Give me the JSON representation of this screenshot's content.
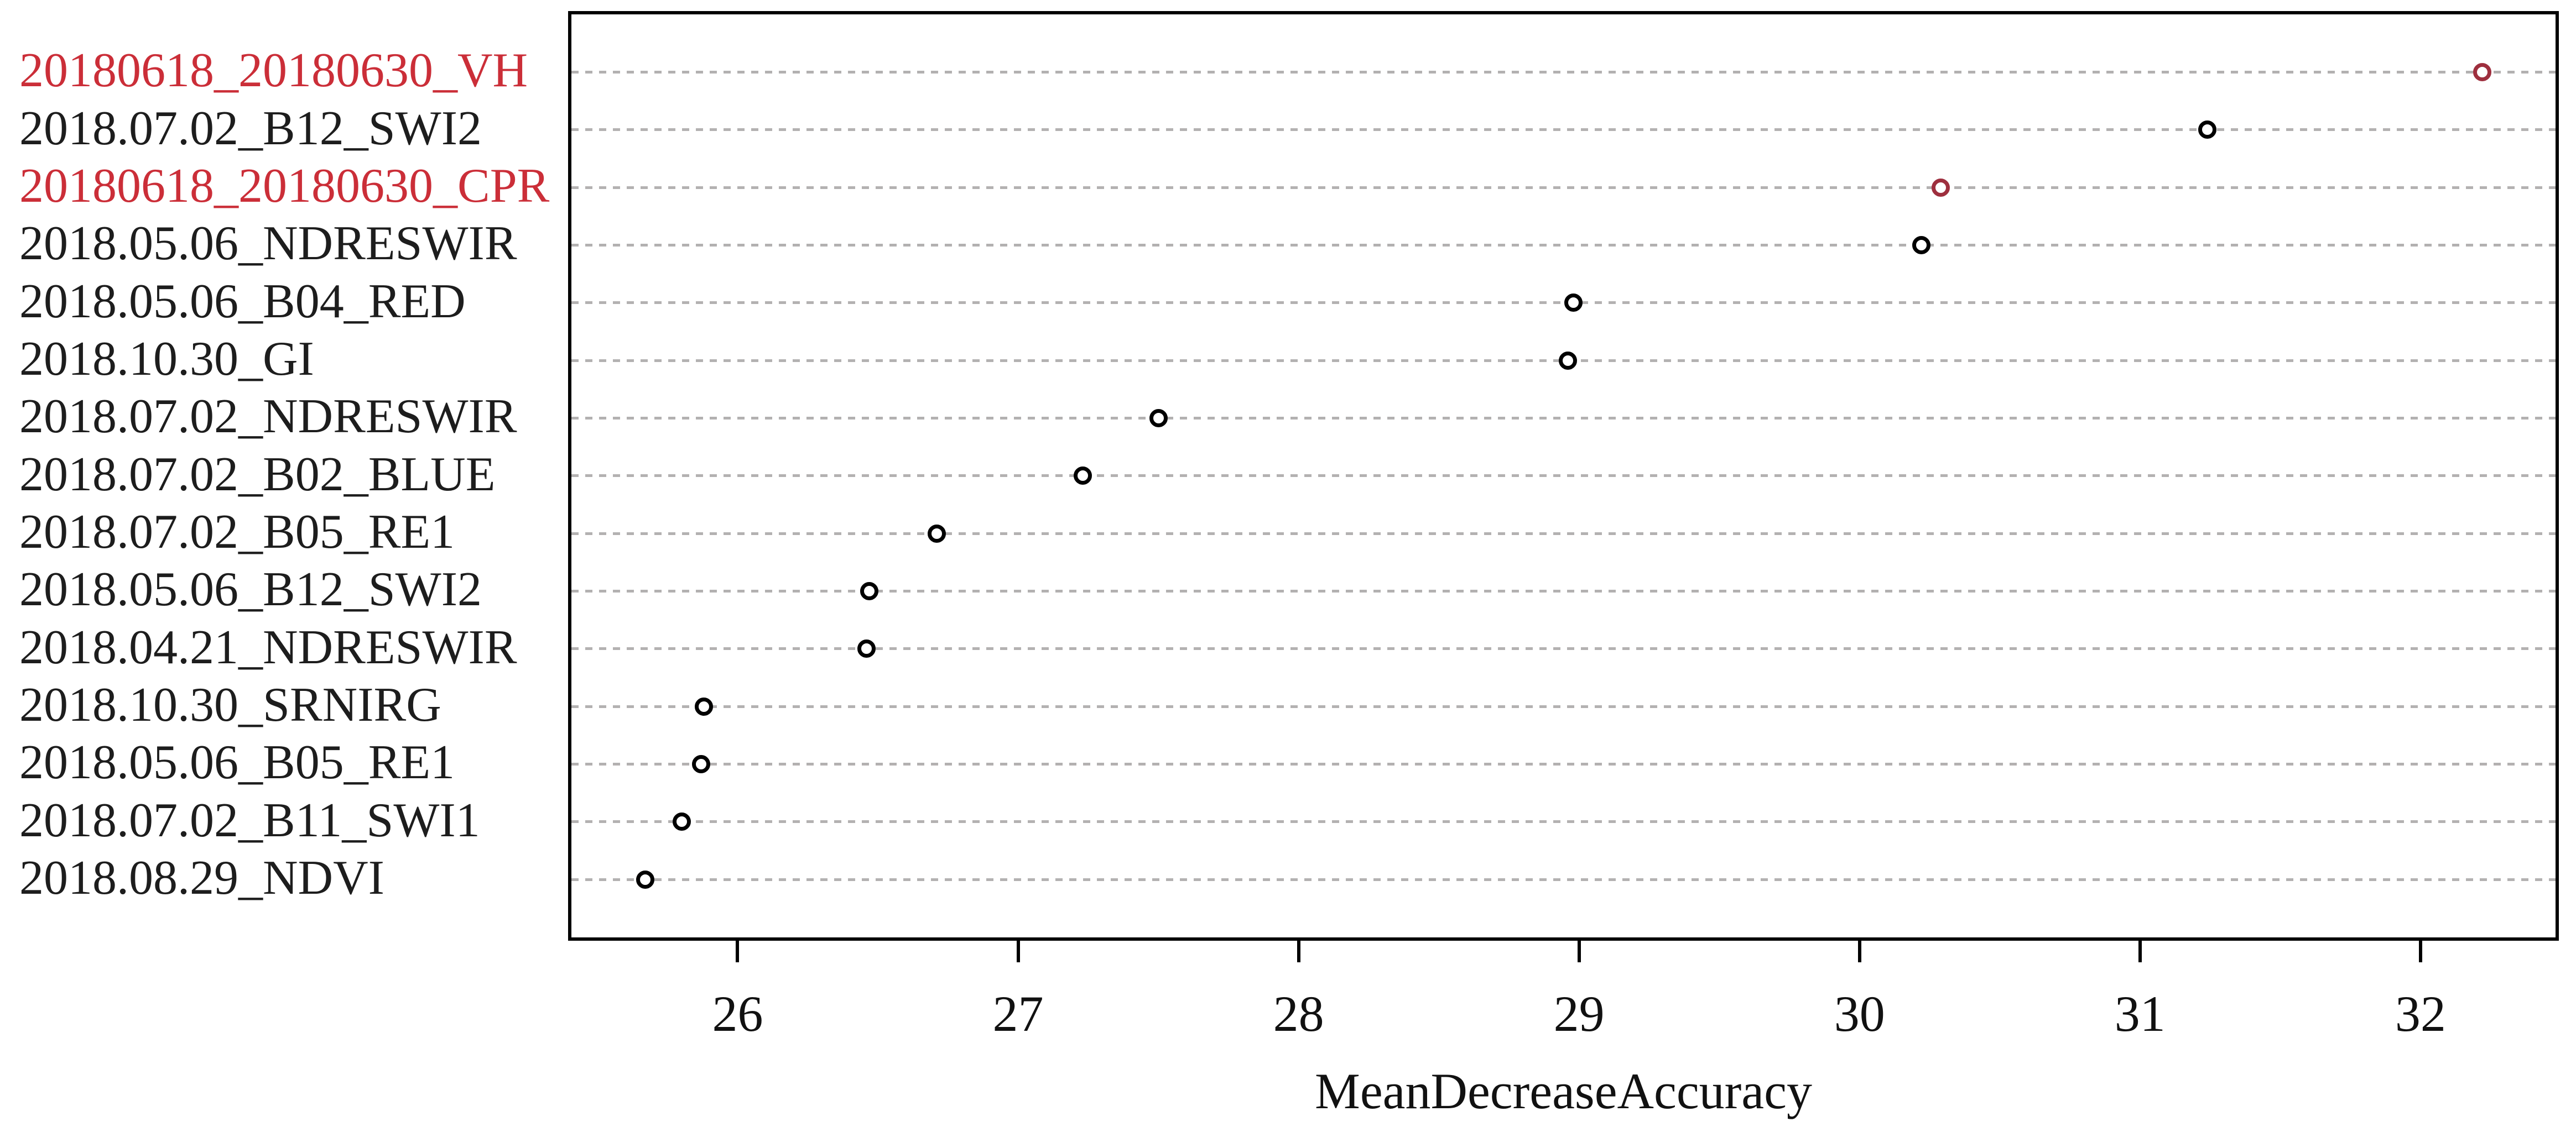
{
  "chart_data": {
    "type": "scatter",
    "subtype": "dotchart-variable-importance",
    "title": "",
    "xlabel": "MeanDecreaseAccuracy",
    "ylabel": "",
    "xlim": [
      25.41,
      32.48
    ],
    "xticks": [
      26,
      27,
      28,
      29,
      30,
      31,
      32
    ],
    "grid": "horizontal-dashed",
    "legend_position": "none",
    "point_marker": "open-circle",
    "row_order": "top-to-bottom",
    "categories": [
      "20180618_20180630_VH",
      "2018.07.02_B12_SWI2",
      "20180618_20180630_CPR",
      "2018.05.06_NDRESWIR",
      "2018.05.06_B04_RED",
      "2018.10.30_GI",
      "2018.07.02_NDRESWIR",
      "2018.07.02_B02_BLUE",
      "2018.07.02_B05_RE1",
      "2018.05.06_B12_SWI2",
      "2018.04.21_NDRESWIR",
      "2018.10.30_SRNIRG",
      "2018.05.06_B05_RE1",
      "2018.07.02_B11_SWI1",
      "2018.08.29_NDVI"
    ],
    "values": [
      32.22,
      31.24,
      30.29,
      30.22,
      28.98,
      28.96,
      27.5,
      27.23,
      26.71,
      26.47,
      26.46,
      25.88,
      25.87,
      25.8,
      25.67
    ],
    "highlighted_rows": [
      0,
      2
    ]
  },
  "colors": {
    "background": "#ffffff",
    "frame": "#000000",
    "grid": "#b3b1b1",
    "label": "#1d1d1d",
    "highlight_label": "#cb2e38",
    "point": "#000000",
    "highlight_point": "#9e2f3e"
  }
}
